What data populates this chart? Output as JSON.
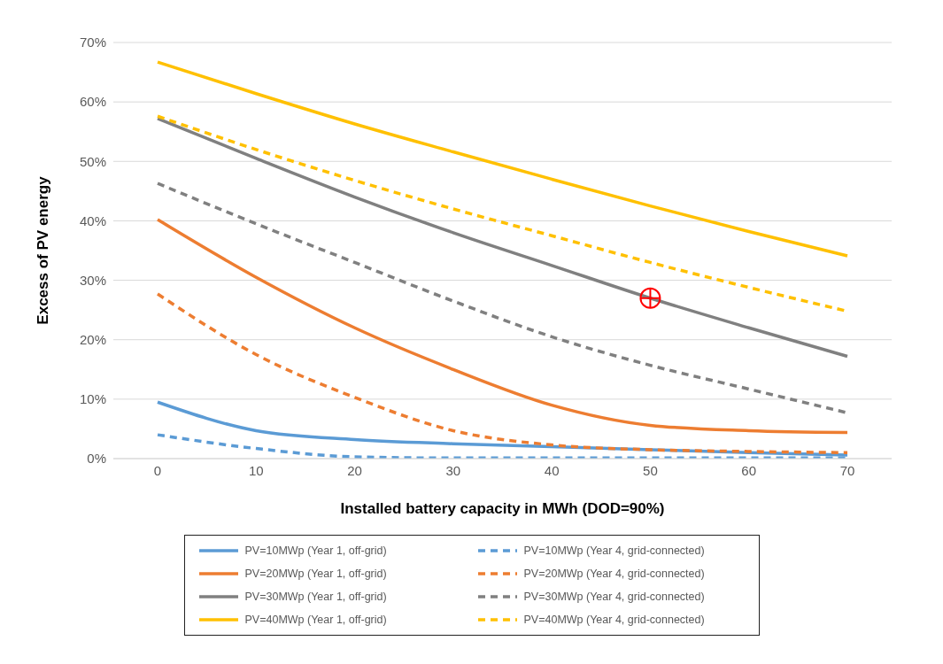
{
  "chart_data": {
    "type": "line",
    "xlabel": "Installed battery capacity in MWh (DOD=90%)",
    "ylabel": "Excess of PV energy",
    "categories": [
      "0",
      "10",
      "20",
      "30",
      "40",
      "50",
      "60",
      "70"
    ],
    "ylim": [
      0,
      70
    ],
    "yticks": [
      {
        "value": 0,
        "label": "0%"
      },
      {
        "value": 10,
        "label": "10%"
      },
      {
        "value": 20,
        "label": "20%"
      },
      {
        "value": 30,
        "label": "30%"
      },
      {
        "value": 40,
        "label": "40%"
      },
      {
        "value": 50,
        "label": "50%"
      },
      {
        "value": 60,
        "label": "60%"
      },
      {
        "value": 70,
        "label": "70%"
      }
    ],
    "grid": "y",
    "legend": "bottom",
    "marker": "none",
    "series": [
      {
        "name": "PV=10MWp (Year 1, off-grid)",
        "color": "#5b9bd5",
        "line_style": "solid",
        "values": [
          9.5,
          4.7,
          3.2,
          2.5,
          2.0,
          1.5,
          1.0,
          0.6
        ]
      },
      {
        "name": "PV=10MWp (Year 4, grid-connected)",
        "color": "#5b9bd5",
        "line_style": "dashed",
        "values": [
          4.0,
          1.7,
          0.3,
          0.1,
          0.1,
          0.1,
          0.1,
          0.1
        ]
      },
      {
        "name": "PV=20MWp (Year 1, off-grid)",
        "color": "#ed7d31",
        "line_style": "solid",
        "values": [
          40.2,
          30.5,
          22.0,
          15.0,
          9.0,
          5.6,
          4.7,
          4.4
        ]
      },
      {
        "name": "PV=20MWp (Year 4, grid-connected)",
        "color": "#ed7d31",
        "line_style": "dashed",
        "values": [
          27.7,
          17.5,
          10.3,
          4.7,
          2.3,
          1.5,
          1.2,
          1.0
        ]
      },
      {
        "name": "PV=30MWp (Year 1, off-grid)",
        "color": "#808080",
        "line_style": "solid",
        "values": [
          57.2,
          50.5,
          44.0,
          38.0,
          32.5,
          27.0,
          22.0,
          17.2
        ]
      },
      {
        "name": "PV=30MWp (Year 4, grid-connected)",
        "color": "#808080",
        "line_style": "dashed",
        "values": [
          46.3,
          39.5,
          33.0,
          26.5,
          20.5,
          15.7,
          11.7,
          7.7
        ]
      },
      {
        "name": "PV=40MWp (Year 1, off-grid)",
        "color": "#ffc000",
        "line_style": "solid",
        "values": [
          66.7,
          61.4,
          56.3,
          51.6,
          47.0,
          42.5,
          38.2,
          34.1
        ]
      },
      {
        "name": "PV=40MWp (Year 4, grid-connected)",
        "color": "#ffc000",
        "line_style": "dashed",
        "values": [
          57.6,
          52.0,
          46.8,
          42.0,
          37.5,
          33.0,
          28.8,
          24.8
        ]
      },
      {
        "type": "scatter",
        "color": "#ff0000",
        "marker": "circle",
        "values": [
          null,
          null,
          null,
          null,
          null,
          27.0,
          null,
          null
        ]
      }
    ]
  }
}
